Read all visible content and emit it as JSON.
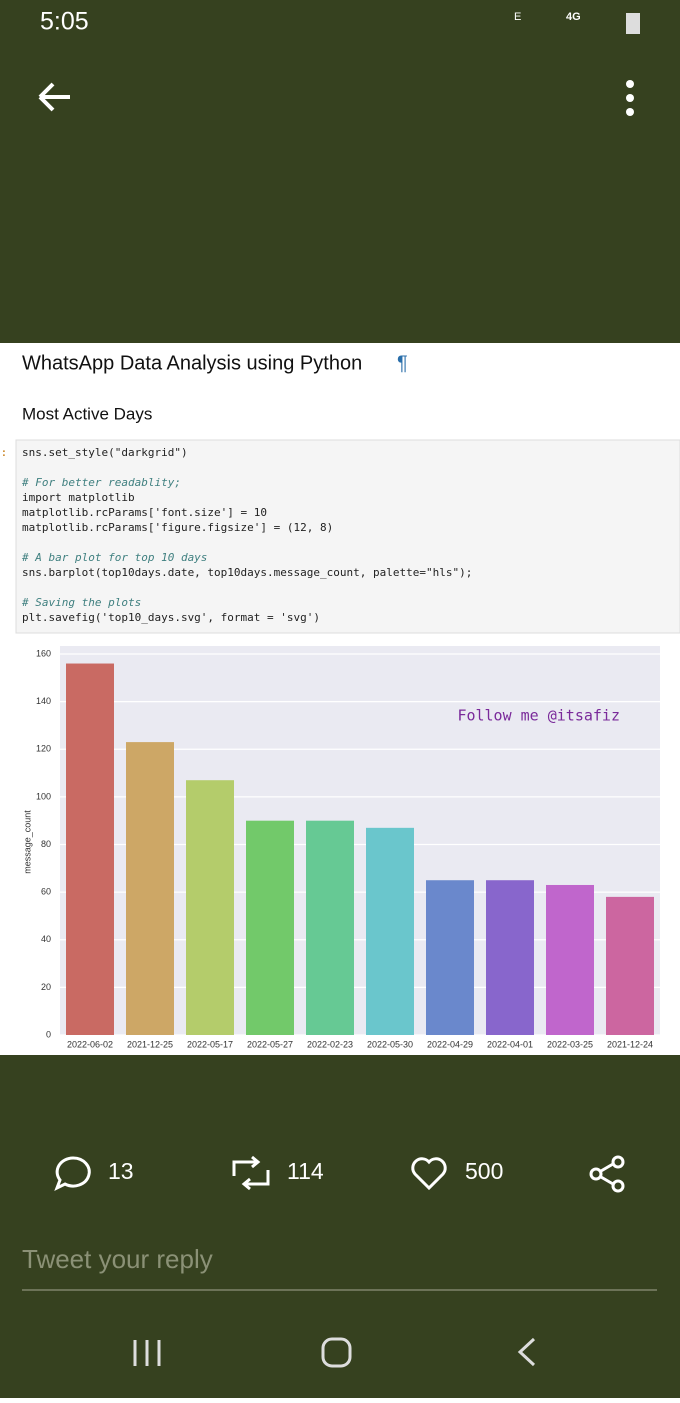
{
  "status_bar": {
    "time": "5:05",
    "network_e": "E",
    "network_4g": "4G"
  },
  "notebook": {
    "title": "WhatsApp Data Analysis using Python",
    "anchor": "¶",
    "subtitle": "Most Active Days",
    "prompt": "]:",
    "code_blocks": [
      [
        "sns.set_style(\"darkgrid\")"
      ],
      [
        "# For better readablity;",
        "import matplotlib",
        "matplotlib.rcParams['font.size'] = 10",
        "matplotlib.rcParams['figure.figsize'] = (12, 8)"
      ],
      [
        "# A bar plot for top 10 days",
        "sns.barplot(top10days.date, top10days.message_count, palette=\"hls\");"
      ],
      [
        "# Saving the plots",
        "plt.savefig('top10_days.svg', format = 'svg')"
      ]
    ]
  },
  "chart_data": {
    "type": "bar",
    "y_label": "message_count",
    "annotation": "Follow me @itsafiz",
    "categories": [
      "2022-06-02",
      "2021-12-25",
      "2022-05-17",
      "2022-05-27",
      "2022-02-23",
      "2022-05-30",
      "2022-04-29",
      "2022-04-01",
      "2022-03-25",
      "2021-12-24"
    ],
    "values": [
      156,
      123,
      107,
      90,
      90,
      87,
      65,
      65,
      63,
      58
    ],
    "colors": [
      "#c96a63",
      "#cda766",
      "#b4cc6b",
      "#72c96a",
      "#66c994",
      "#6ac6cc",
      "#6a88cc",
      "#8866cc",
      "#c066cc",
      "#cc66a0"
    ],
    "ylim": [
      0,
      160
    ],
    "yticks": [
      0,
      20,
      40,
      60,
      80,
      100,
      120,
      140,
      160
    ],
    "grid": true
  },
  "actions": {
    "replies": "13",
    "retweets": "114",
    "likes": "500"
  },
  "reply_placeholder": "Tweet your reply"
}
